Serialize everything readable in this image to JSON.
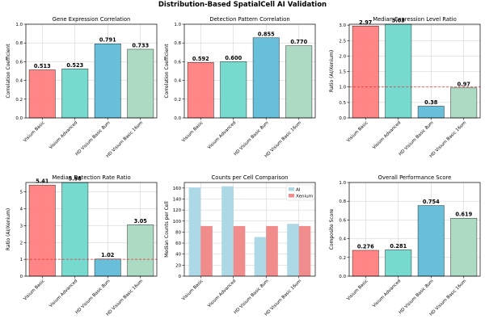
{
  "suptitle": "Distribution-Based SpatialCell AI Validation",
  "colors": {
    "palette": [
      "#ff8080",
      "#70d8cc",
      "#5fbcd8",
      "#a8d8c0"
    ],
    "ai": "#add8e6",
    "xenium": "#f08c8c",
    "reference_line": "#e03030",
    "grid": "#cccccc",
    "edge": "#000000"
  },
  "chart_data": [
    {
      "type": "bar",
      "title": "Gene Expression Correlation",
      "ylabel": "Correlation Coefficient",
      "categories": [
        "Visium Basic",
        "Visium Advanced",
        "HD Visium Basic 8um",
        "HD Visium Basic 16um"
      ],
      "values": [
        0.513,
        0.523,
        0.791,
        0.733
      ],
      "value_labels": [
        "0.513",
        "0.523",
        "0.791",
        "0.733"
      ],
      "ylim": [
        0,
        1.0
      ],
      "yticks": [
        0.0,
        0.2,
        0.4,
        0.6,
        0.8,
        1.0
      ],
      "ytick_labels": [
        "0.0",
        "0.2",
        "0.4",
        "0.6",
        "0.8",
        "1.0"
      ],
      "grid": true
    },
    {
      "type": "bar",
      "title": "Detection Pattern Correlation",
      "ylabel": "Correlation Coefficient",
      "categories": [
        "Visium Basic",
        "Visium Advanced",
        "HD Visium Basic 8um",
        "HD Visium Basic 16um"
      ],
      "values": [
        0.592,
        0.6,
        0.855,
        0.77
      ],
      "value_labels": [
        "0.592",
        "0.600",
        "0.855",
        "0.770"
      ],
      "ylim": [
        0,
        1.0
      ],
      "yticks": [
        0.0,
        0.2,
        0.4,
        0.6,
        0.8,
        1.0
      ],
      "ytick_labels": [
        "0.0",
        "0.2",
        "0.4",
        "0.6",
        "0.8",
        "1.0"
      ],
      "grid": true
    },
    {
      "type": "bar",
      "title": "Median Expression Level Ratio",
      "ylabel": "Ratio (AI/Xenium)",
      "categories": [
        "Visium Basic",
        "Visium Advanced",
        "HD Visium Basic 8um",
        "HD Visium Basic 16um"
      ],
      "values": [
        2.97,
        3.03,
        0.38,
        0.97
      ],
      "value_labels": [
        "2.97",
        "3.03",
        "0.38",
        "0.97"
      ],
      "ylim": [
        0,
        3.03
      ],
      "yticks": [
        0.0,
        0.5,
        1.0,
        1.5,
        2.0,
        2.5,
        3.0
      ],
      "ytick_labels": [
        "0.0",
        "0.5",
        "1.0",
        "1.5",
        "2.0",
        "2.5",
        "3.0"
      ],
      "reference_line": 1.0,
      "grid": true
    },
    {
      "type": "bar",
      "title": "Median Detection Rate Ratio",
      "ylabel": "Ratio (AI/Xenium)",
      "categories": [
        "Visium Basic",
        "Visium Advanced",
        "HD Visium Basic 8um",
        "HD Visium Basic 16um"
      ],
      "values": [
        5.41,
        5.56,
        1.02,
        3.05
      ],
      "value_labels": [
        "5.41",
        "5.56",
        "1.02",
        "3.05"
      ],
      "ylim": [
        0,
        5.56
      ],
      "yticks": [
        0,
        1,
        2,
        3,
        4,
        5
      ],
      "ytick_labels": [
        "0",
        "1",
        "2",
        "3",
        "4",
        "5"
      ],
      "reference_line": 1.0,
      "grid": true
    },
    {
      "type": "bar",
      "title": "Counts per Cell Comparison",
      "ylabel": "Median Counts per Cell",
      "categories": [
        "Visium Basic",
        "Visium Advanced",
        "HD Visium Basic 8um",
        "HD Visium Basic 16um"
      ],
      "series": [
        {
          "name": "AI",
          "values": [
            161,
            163,
            71,
            95
          ]
        },
        {
          "name": "Xenium",
          "values": [
            91,
            91,
            91,
            91
          ]
        }
      ],
      "ylim": [
        0,
        170
      ],
      "yticks": [
        0,
        20,
        40,
        60,
        80,
        100,
        120,
        140,
        160
      ],
      "ytick_labels": [
        "0",
        "20",
        "40",
        "60",
        "80",
        "100",
        "120",
        "140",
        "160"
      ],
      "legend_position": "upper-right",
      "grid": true
    },
    {
      "type": "bar",
      "title": "Overall Performance Score",
      "ylabel": "Composite Score",
      "categories": [
        "Visium Basic",
        "Visium Advanced",
        "HD Visium Basic 8um",
        "HD Visium Basic 16um"
      ],
      "values": [
        0.276,
        0.281,
        0.754,
        0.619
      ],
      "value_labels": [
        "0.276",
        "0.281",
        "0.754",
        "0.619"
      ],
      "ylim": [
        0,
        1.0
      ],
      "yticks": [
        0.0,
        0.2,
        0.4,
        0.6,
        0.8,
        1.0
      ],
      "ytick_labels": [
        "0.0",
        "0.2",
        "0.4",
        "0.6",
        "0.8",
        "1.0"
      ],
      "grid": true
    }
  ]
}
